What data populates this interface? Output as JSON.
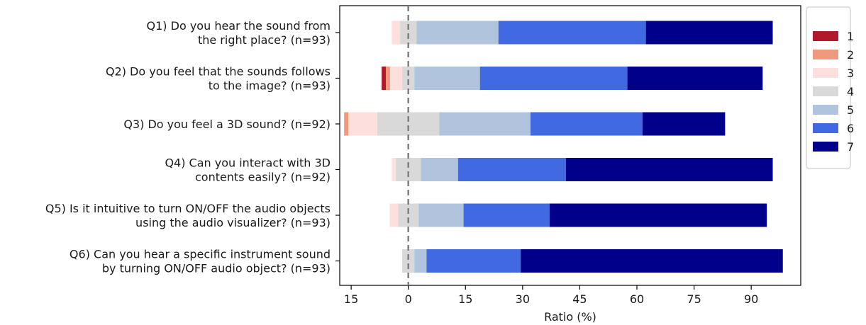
{
  "chart_data": {
    "type": "bar",
    "orientation": "horizontal-diverging-stacked",
    "xlabel": "Ratio (%)",
    "xticks": [
      "15",
      "0",
      "15",
      "30",
      "45",
      "60",
      "75",
      "90"
    ],
    "xlim": [
      -18,
      103
    ],
    "center_line": 0,
    "legend": {
      "placement": "right",
      "labels": [
        "1",
        "2",
        "3",
        "4",
        "5",
        "6",
        "7"
      ]
    },
    "colors": [
      "#b2182b",
      "#ef9a7f",
      "#fde0dd",
      "#d9d9d9",
      "#b0c4de",
      "#4169e1",
      "#00008b"
    ],
    "categories": [
      [
        "Q1) Do you hear the sound from",
        "the right place? (n=93)"
      ],
      [
        "Q2) Do you feel that the sounds follows",
        "to the image? (n=93)"
      ],
      [
        "Q3) Do you feel a 3D sound? (n=92)"
      ],
      [
        "Q4) Can you interact with 3D",
        "contents easily? (n=92)"
      ],
      [
        "Q5) Is it intuitive to turn ON/OFF the audio objects",
        "using the audio visualizer? (n=93)"
      ],
      [
        "Q6) Can you hear a specific instrument sound",
        "by turning ON/OFF audio object? (n=93)"
      ]
    ],
    "series": [
      {
        "name": "1",
        "values": [
          0,
          1.1,
          0,
          0,
          0,
          0
        ]
      },
      {
        "name": "2",
        "values": [
          0,
          1.1,
          1.1,
          0,
          0,
          0
        ]
      },
      {
        "name": "3",
        "values": [
          2.2,
          3.2,
          7.6,
          1.1,
          2.2,
          0
        ]
      },
      {
        "name": "4",
        "values": [
          4.3,
          3.2,
          16.3,
          6.5,
          5.4,
          3.2
        ]
      },
      {
        "name": "5",
        "values": [
          21.5,
          17.2,
          23.9,
          9.8,
          11.8,
          3.2
        ]
      },
      {
        "name": "6",
        "values": [
          38.7,
          38.7,
          29.4,
          28.3,
          22.6,
          24.7
        ]
      },
      {
        "name": "7",
        "values": [
          33.3,
          35.5,
          21.7,
          54.3,
          57.0,
          68.8
        ]
      }
    ]
  }
}
